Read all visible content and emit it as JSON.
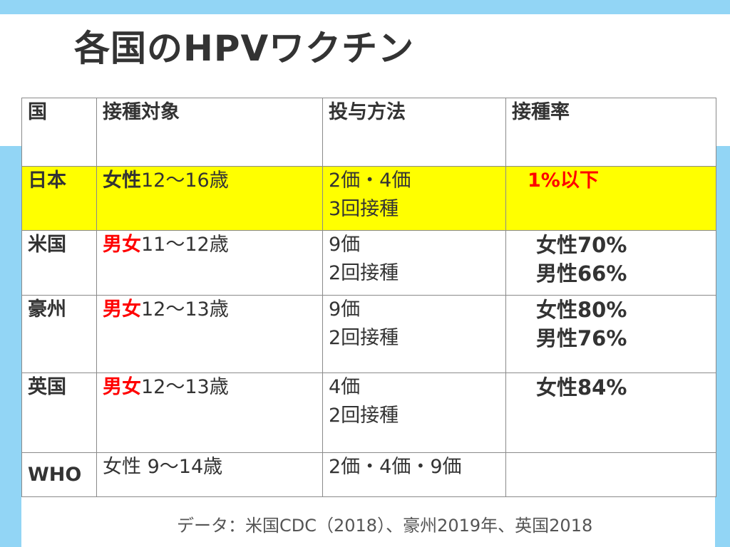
{
  "slide": {
    "title": "各国のHPVワクチン",
    "source": "データ：米国CDC（2018）、豪州2019年、英国2018"
  },
  "table": {
    "headers": {
      "country": "国",
      "target": "接種対象",
      "method": "投与方法",
      "rate": "接種率"
    },
    "rows": [
      {
        "country": "日本",
        "target_sex": "女性",
        "target_age": "12～16歳",
        "method_line1": "2価・4価",
        "method_line2": "3回接種",
        "rate_line1": "1%以下",
        "rate_line2": "",
        "highlight": true
      },
      {
        "country": "米国",
        "target_sex": "男女",
        "target_age": "11～12歳",
        "method_line1": "9価",
        "method_line2": "2回接種",
        "rate_line1": "女性70%",
        "rate_line2": "男性66%"
      },
      {
        "country": "豪州",
        "target_sex": "男女",
        "target_age": "12～13歳",
        "method_line1": "9価",
        "method_line2": "2回接種",
        "rate_line1": "女性80%",
        "rate_line2": "男性76%"
      },
      {
        "country": "英国",
        "target_sex": "男女",
        "target_age": "12～13歳",
        "method_line1": "4価",
        "method_line2": "2回接種",
        "rate_line1": "女性84%",
        "rate_line2": ""
      },
      {
        "country": "WHO",
        "target_sex": "女性",
        "target_age": " 9～14歳",
        "method_line1": "2価・4価・9価",
        "method_line2": "",
        "rate_line1": "",
        "rate_line2": ""
      }
    ]
  },
  "colors": {
    "band": "#92d5f5",
    "highlight": "#ffff00",
    "emphasis": "#ff0000",
    "text": "#333333"
  }
}
